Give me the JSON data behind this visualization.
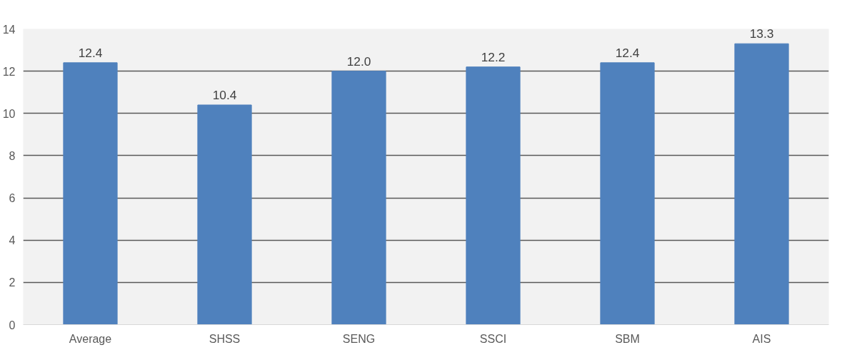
{
  "chart_data": {
    "type": "bar",
    "categories": [
      "Average",
      "SHSS",
      "SENG",
      "SSCI",
      "SBM",
      "AIS"
    ],
    "values": [
      12.4,
      10.4,
      12.0,
      12.2,
      12.4,
      13.3
    ],
    "value_labels": [
      "12.4",
      "10.4",
      "12.0",
      "12.2",
      "12.4",
      "13.3"
    ],
    "colors": [
      "#4f81bd",
      "#4f81bd",
      "#4f81bd",
      "#4f81bd",
      "#4f81bd",
      "#4f81bd"
    ],
    "ylim": [
      0,
      14
    ],
    "yticks": [
      0,
      2,
      4,
      6,
      8,
      10,
      12,
      14
    ],
    "grid": "y"
  }
}
